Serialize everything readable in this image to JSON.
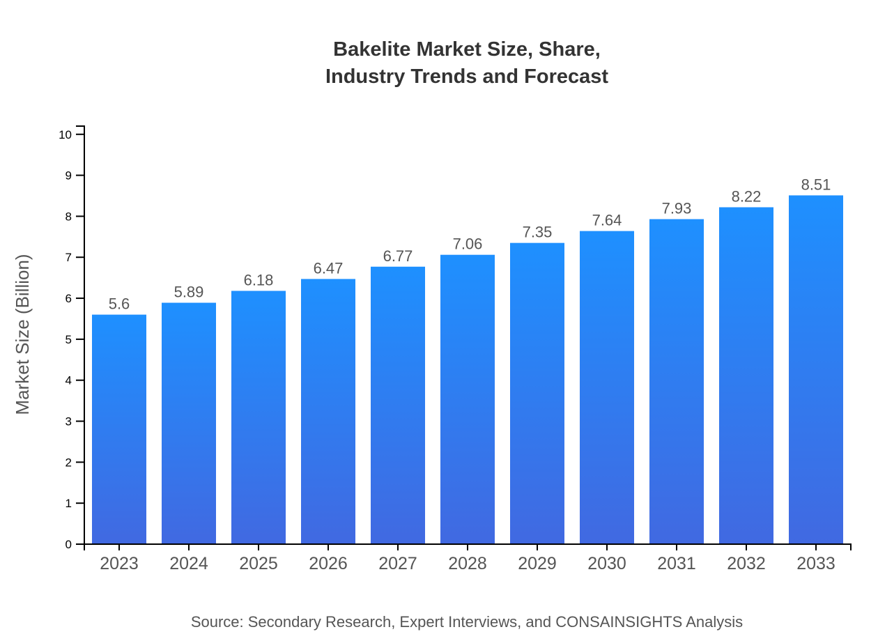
{
  "chart_data": {
    "type": "bar",
    "title": [
      "Bakelite Market Size, Share,",
      "Industry Trends and Forecast"
    ],
    "xlabel": "",
    "ylabel": "Market Size (Billion)",
    "categories": [
      "2023",
      "2024",
      "2025",
      "2026",
      "2027",
      "2028",
      "2029",
      "2030",
      "2031",
      "2032",
      "2033"
    ],
    "values": [
      5.6,
      5.89,
      6.18,
      6.47,
      6.77,
      7.06,
      7.35,
      7.64,
      7.93,
      8.22,
      8.51
    ],
    "value_labels": [
      "5.6",
      "5.89",
      "6.18",
      "6.47",
      "6.77",
      "7.06",
      "7.35",
      "7.64",
      "7.93",
      "8.22",
      "8.51"
    ],
    "ylim": [
      0,
      10.2
    ],
    "yticks": [
      "0",
      "1",
      "2",
      "3",
      "4",
      "5",
      "6",
      "7",
      "8",
      "9",
      "10"
    ],
    "grid": false,
    "legend": "none",
    "colors": {
      "bar_top": "#1e90ff",
      "bar_bottom": "#4169e1"
    },
    "source": "Source: Secondary Research, Expert Interviews, and CONSAINSIGHTS Analysis"
  }
}
